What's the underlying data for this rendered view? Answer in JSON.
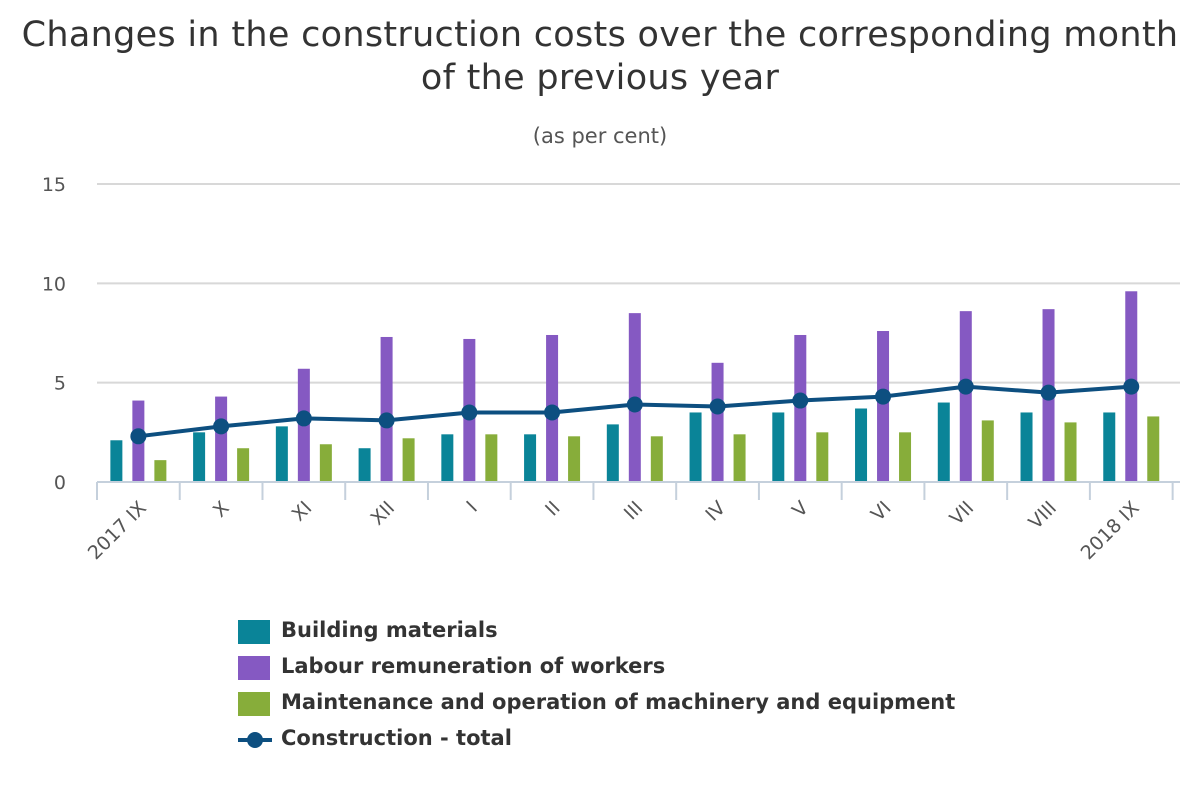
{
  "chart_data": {
    "type": "bar",
    "title": "Changes in the construction costs over the corresponding month of the previous year",
    "subtitle": "(as per cent)",
    "categories": [
      "2017 IX",
      "X",
      "XI",
      "XII",
      "I",
      "II",
      "III",
      "IV",
      "V",
      "VI",
      "VII",
      "VIII",
      "2018 IX"
    ],
    "ylim": [
      0,
      15
    ],
    "yticks": [
      0,
      5,
      10,
      15
    ],
    "grid": true,
    "legend_position": "bottom",
    "series": [
      {
        "name": "Building materials",
        "type": "bar",
        "color": "#0a8498",
        "values": [
          2.1,
          2.5,
          2.8,
          1.7,
          2.4,
          2.4,
          2.9,
          3.5,
          3.5,
          3.7,
          4.0,
          3.5,
          3.5
        ]
      },
      {
        "name": "Labour remuneration of workers",
        "type": "bar",
        "color": "#8559c2",
        "values": [
          4.1,
          4.3,
          5.7,
          7.3,
          7.2,
          7.4,
          8.5,
          6.0,
          7.4,
          7.6,
          8.6,
          8.7,
          9.6
        ]
      },
      {
        "name": "Maintenance and operation of machinery and equipment",
        "type": "bar",
        "color": "#87ad3a",
        "values": [
          1.1,
          1.7,
          1.9,
          2.2,
          2.4,
          2.3,
          2.3,
          2.4,
          2.5,
          2.5,
          3.1,
          3.0,
          3.3
        ]
      },
      {
        "name": "Construction - total",
        "type": "line",
        "color": "#0d4f80",
        "values": [
          2.3,
          2.8,
          3.2,
          3.1,
          3.5,
          3.5,
          3.9,
          3.8,
          4.1,
          4.3,
          4.8,
          4.5,
          4.8
        ]
      }
    ]
  }
}
